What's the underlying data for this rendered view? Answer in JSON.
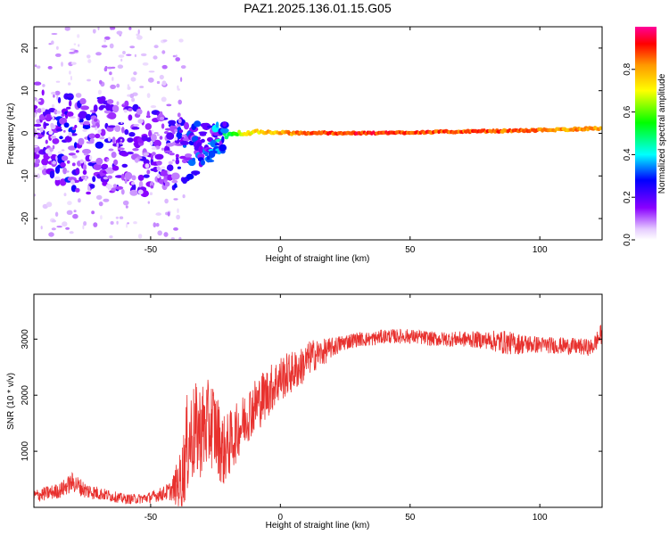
{
  "title": "PAZ1.2025.136.01.15.G05",
  "colors": {
    "snr_line": "#e8312e",
    "ridge_low": "#7b1ee8",
    "ridge_high": "#ff1a1a",
    "frame": "#000000"
  },
  "chart_data": [
    {
      "type": "heatmap",
      "name": "spectrogram",
      "xlabel": "Height of straight line (km)",
      "ylabel": "Frequency (Hz)",
      "xlim": [
        -95,
        124
      ],
      "ylim": [
        -25,
        25
      ],
      "xticks": [
        -50,
        0,
        50,
        100
      ],
      "yticks": [
        -20,
        -10,
        0,
        10,
        20
      ],
      "colorbar": {
        "label": "Normalized spectral amplitude",
        "range": [
          0,
          1
        ],
        "ticks": [
          0.0,
          0.2,
          0.4,
          0.6,
          0.8
        ],
        "colormap": [
          "#ffffff",
          "#d9b3ff",
          "#8a00ff",
          "#0000ff",
          "#00ffff",
          "#00ff00",
          "#ffff00",
          "#ff9900",
          "#ff0000",
          "#ff0099"
        ]
      },
      "ridge": {
        "x": [
          -95,
          -85,
          -75,
          -65,
          -55,
          -45,
          -35,
          -25,
          -15,
          -5,
          5,
          15,
          30,
          50,
          70,
          90,
          110,
          124
        ],
        "freq": [
          1.5,
          -1.5,
          -3.0,
          -2.5,
          -4.0,
          -4.5,
          -5.0,
          -1.5,
          0.2,
          0.3,
          0.0,
          0.1,
          0.0,
          0.2,
          0.4,
          0.6,
          0.9,
          1.2
        ],
        "amp": [
          0.25,
          0.35,
          0.35,
          0.3,
          0.3,
          0.3,
          0.4,
          0.45,
          0.7,
          0.8,
          0.85,
          0.9,
          0.95,
          0.92,
          0.9,
          0.88,
          0.85,
          0.8
        ],
        "spread_hz": [
          14,
          14,
          14,
          14,
          13,
          12,
          9,
          5,
          2.5,
          1.5,
          1.2,
          1.0,
          0.9,
          0.9,
          0.9,
          0.9,
          1.0,
          1.1
        ]
      }
    },
    {
      "type": "line",
      "name": "snr",
      "xlabel": "Height of straight line (km)",
      "ylabel": "SNR (10 * v/v)",
      "xlim": [
        -95,
        124
      ],
      "ylim": [
        0,
        3800
      ],
      "xticks": [
        -50,
        0,
        50,
        100
      ],
      "yticks": [
        1000,
        2000,
        3000
      ],
      "series": [
        {
          "name": "SNR",
          "x": [
            -95,
            -90,
            -85,
            -80,
            -75,
            -70,
            -65,
            -60,
            -55,
            -50,
            -45,
            -42,
            -38,
            -36,
            -34,
            -30,
            -26,
            -22,
            -20,
            -16,
            -12,
            -8,
            -4,
            0,
            4,
            8,
            12,
            16,
            20,
            25,
            30,
            35,
            40,
            50,
            60,
            70,
            80,
            85,
            90,
            100,
            110,
            120,
            124
          ],
          "y": [
            200,
            250,
            300,
            450,
            300,
            250,
            200,
            150,
            150,
            180,
            250,
            300,
            500,
            1100,
            1300,
            1400,
            1500,
            1000,
            1100,
            1400,
            1700,
            1900,
            2100,
            2300,
            2400,
            2500,
            2700,
            2750,
            2850,
            2950,
            3000,
            3000,
            3050,
            3050,
            3000,
            3000,
            2980,
            2950,
            2920,
            2900,
            2880,
            2850,
            3100
          ],
          "spread": [
            120,
            130,
            140,
            180,
            150,
            120,
            100,
            90,
            90,
            100,
            130,
            180,
            600,
            900,
            900,
            850,
            800,
            650,
            600,
            500,
            500,
            500,
            450,
            420,
            380,
            350,
            300,
            250,
            180,
            150,
            130,
            130,
            130,
            130,
            130,
            140,
            160,
            220,
            200,
            150,
            150,
            150,
            200
          ]
        }
      ]
    }
  ]
}
